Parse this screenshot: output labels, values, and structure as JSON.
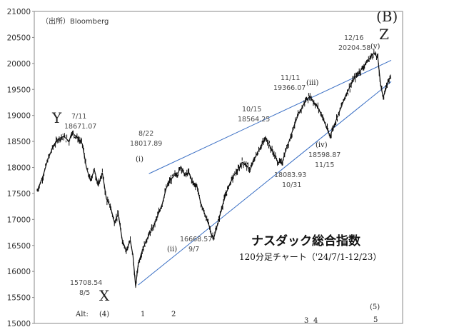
{
  "chart_data": {
    "type": "line",
    "title": "ナスダック総合指数",
    "subtitle": "120分足チャート（'24/7/1-12/23）",
    "source": "（出所）Bloomberg",
    "ylim": [
      15000,
      21000
    ],
    "yticks": [
      15000,
      15500,
      16000,
      16500,
      17000,
      17500,
      18000,
      18500,
      19000,
      19500,
      20000,
      20500,
      21000
    ],
    "grid": false,
    "series_points": [
      [
        0,
        17550
      ],
      [
        4,
        17800
      ],
      [
        8,
        18150
      ],
      [
        12,
        18400
      ],
      [
        16,
        18550
      ],
      [
        20,
        18600
      ],
      [
        24,
        18500
      ],
      [
        26,
        18671
      ],
      [
        30,
        18580
      ],
      [
        34,
        18450
      ],
      [
        37,
        18000
      ],
      [
        40,
        17750
      ],
      [
        43,
        17950
      ],
      [
        46,
        17650
      ],
      [
        49,
        17900
      ],
      [
        52,
        17400
      ],
      [
        55,
        17250
      ],
      [
        58,
        16950
      ],
      [
        61,
        17100
      ],
      [
        64,
        16600
      ],
      [
        67,
        16400
      ],
      [
        70,
        16600
      ],
      [
        72,
        16300
      ],
      [
        74,
        15708.54
      ],
      [
        76,
        16150
      ],
      [
        79,
        16400
      ],
      [
        82,
        16600
      ],
      [
        85,
        16750
      ],
      [
        88,
        16900
      ],
      [
        91,
        17100
      ],
      [
        94,
        17300
      ],
      [
        97,
        17600
      ],
      [
        100,
        17750
      ],
      [
        103,
        17850
      ],
      [
        106,
        17900
      ],
      [
        108,
        18017.89
      ],
      [
        111,
        17850
      ],
      [
        114,
        17900
      ],
      [
        117,
        17700
      ],
      [
        120,
        17650
      ],
      [
        123,
        17300
      ],
      [
        126,
        17100
      ],
      [
        129,
        16900
      ],
      [
        131,
        16700
      ],
      [
        133,
        16668.57
      ],
      [
        136,
        16950
      ],
      [
        139,
        17250
      ],
      [
        142,
        17500
      ],
      [
        145,
        17700
      ],
      [
        148,
        17850
      ],
      [
        151,
        17950
      ],
      [
        154,
        18100
      ],
      [
        157,
        18050
      ],
      [
        160,
        17950
      ],
      [
        163,
        18150
      ],
      [
        166,
        18300
      ],
      [
        169,
        18450
      ],
      [
        172,
        18564.25
      ],
      [
        175,
        18400
      ],
      [
        178,
        18250
      ],
      [
        181,
        18100
      ],
      [
        184,
        18083.93
      ],
      [
        187,
        18350
      ],
      [
        190,
        18550
      ],
      [
        193,
        18800
      ],
      [
        196,
        19000
      ],
      [
        199,
        19150
      ],
      [
        202,
        19300
      ],
      [
        205,
        19366.07
      ],
      [
        208,
        19250
      ],
      [
        211,
        19150
      ],
      [
        214,
        19000
      ],
      [
        217,
        18800
      ],
      [
        220,
        18598.87
      ],
      [
        223,
        18800
      ],
      [
        226,
        19000
      ],
      [
        229,
        19200
      ],
      [
        232,
        19400
      ],
      [
        235,
        19550
      ],
      [
        238,
        19700
      ],
      [
        241,
        19800
      ],
      [
        244,
        19900
      ],
      [
        247,
        20000
      ],
      [
        250,
        20100
      ],
      [
        253,
        20204.58
      ],
      [
        256,
        20100
      ],
      [
        258,
        19600
      ],
      [
        260,
        19350
      ],
      [
        262,
        19500
      ],
      [
        264,
        19700
      ],
      [
        266,
        19720
      ]
    ],
    "x_range": [
      0,
      266
    ],
    "trendlines": [
      {
        "from": [
          84,
          17880
        ],
        "to": [
          266,
          20060
        ]
      },
      {
        "from": [
          76,
          15740
        ],
        "to": [
          266,
          19650
        ]
      }
    ],
    "annotations": [
      {
        "date": "7/11",
        "value": "18671.07"
      },
      {
        "date": "8/5",
        "value": "15708.54"
      },
      {
        "date": "8/22",
        "value": "18017.89"
      },
      {
        "date": "9/7",
        "value": "16668.57"
      },
      {
        "date": "10/15",
        "value": "18564.25"
      },
      {
        "date": "10/31",
        "value": "18083.93"
      },
      {
        "date": "11/11",
        "value": "19366.07"
      },
      {
        "date": "11/15",
        "value": "18598.87"
      },
      {
        "date": "12/16",
        "value": "20204.58"
      }
    ],
    "wave_labels": {
      "Y": "Y",
      "X": "X",
      "Z": "Z",
      "B": "(B)",
      "i": "(ⅰ)",
      "ii": "(ⅱ)",
      "iii": "(ⅲ)",
      "iv": "(ⅳ)",
      "v": "(ⅴ)"
    },
    "alt_labels": {
      "prefix": "Alt:",
      "w4": "(4)",
      "w1": "1",
      "w2": "2",
      "w3": "3",
      "w4b": "4",
      "w5": "5",
      "w5b": "(5)"
    }
  }
}
